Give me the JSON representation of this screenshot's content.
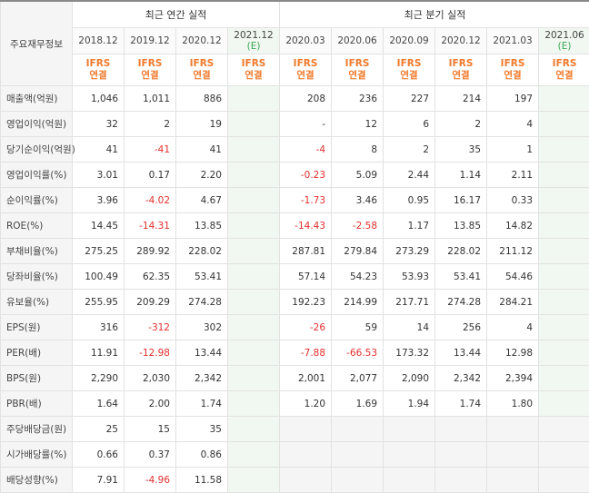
{
  "corner_label": "주요재무정보",
  "annual_title": "최근 연간 실적",
  "quarterly_title": "최근 분기 실적",
  "estimate_mark": "(E)",
  "ifrs_line1": "IFRS",
  "ifrs_line2": "연결",
  "annual_periods": [
    "2018.12",
    "2019.12",
    "2020.12",
    "2021.12"
  ],
  "quarterly_periods": [
    "2020.03",
    "2020.06",
    "2020.09",
    "2020.12",
    "2021.03",
    "2021.06"
  ],
  "colors": {
    "negative": "#e32e2e",
    "ifrs": "#f07a2c",
    "estimate_bg": "#f1f8f1",
    "estimate_mark": "#3aa652"
  },
  "groups": [
    {
      "rows": [
        {
          "label": "매출액(억원)",
          "annual": [
            "1,046",
            "1,011",
            "886",
            ""
          ],
          "quarterly": [
            "208",
            "236",
            "227",
            "214",
            "197",
            ""
          ]
        },
        {
          "label": "영업이익(억원)",
          "annual": [
            "32",
            "2",
            "19",
            ""
          ],
          "quarterly": [
            "-",
            "12",
            "6",
            "2",
            "4",
            ""
          ]
        },
        {
          "label": "당기순이익(억원)",
          "annual": [
            "41",
            "-41",
            "41",
            ""
          ],
          "quarterly": [
            "-4",
            "8",
            "2",
            "35",
            "1",
            ""
          ]
        }
      ]
    },
    {
      "rows": [
        {
          "label": "영업이익률(%)",
          "annual": [
            "3.01",
            "0.17",
            "2.20",
            ""
          ],
          "quarterly": [
            "-0.23",
            "5.09",
            "2.44",
            "1.14",
            "2.11",
            ""
          ]
        },
        {
          "label": "순이익률(%)",
          "annual": [
            "3.96",
            "-4.02",
            "4.67",
            ""
          ],
          "quarterly": [
            "-1.73",
            "3.46",
            "0.95",
            "16.17",
            "0.33",
            ""
          ]
        },
        {
          "label": "ROE(%)",
          "annual": [
            "14.45",
            "-14.31",
            "13.85",
            ""
          ],
          "quarterly": [
            "-14.43",
            "-2.58",
            "1.17",
            "13.85",
            "14.82",
            ""
          ]
        }
      ]
    },
    {
      "rows": [
        {
          "label": "부채비율(%)",
          "annual": [
            "275.25",
            "289.92",
            "228.02",
            ""
          ],
          "quarterly": [
            "287.81",
            "279.84",
            "273.29",
            "228.02",
            "211.12",
            ""
          ]
        },
        {
          "label": "당좌비율(%)",
          "annual": [
            "100.49",
            "62.35",
            "53.41",
            ""
          ],
          "quarterly": [
            "57.14",
            "54.23",
            "53.93",
            "53.41",
            "54.46",
            ""
          ]
        },
        {
          "label": "유보율(%)",
          "annual": [
            "255.95",
            "209.29",
            "274.28",
            ""
          ],
          "quarterly": [
            "192.23",
            "214.99",
            "217.71",
            "274.28",
            "284.21",
            ""
          ]
        }
      ]
    },
    {
      "rows": [
        {
          "label": "EPS(원)",
          "annual": [
            "316",
            "-312",
            "302",
            ""
          ],
          "quarterly": [
            "-26",
            "59",
            "14",
            "256",
            "4",
            ""
          ]
        },
        {
          "label": "PER(배)",
          "annual": [
            "11.91",
            "-12.98",
            "13.44",
            ""
          ],
          "quarterly": [
            "-7.88",
            "-66.53",
            "173.32",
            "13.44",
            "12.98",
            ""
          ]
        },
        {
          "label": "BPS(원)",
          "annual": [
            "2,290",
            "2,030",
            "2,342",
            ""
          ],
          "quarterly": [
            "2,001",
            "2,077",
            "2,090",
            "2,342",
            "2,394",
            ""
          ]
        },
        {
          "label": "PBR(배)",
          "annual": [
            "1.64",
            "2.00",
            "1.74",
            ""
          ],
          "quarterly": [
            "1.20",
            "1.69",
            "1.94",
            "1.74",
            "1.80",
            ""
          ]
        }
      ]
    },
    {
      "rows": [
        {
          "label": "주당배당금(원)",
          "annual": [
            "25",
            "15",
            "35",
            ""
          ],
          "quarterly": [
            "",
            "",
            "",
            "",
            "",
            ""
          ],
          "quarterly_blank": true
        },
        {
          "label": "시가배당률(%)",
          "annual": [
            "0.66",
            "0.37",
            "0.86",
            ""
          ],
          "quarterly": [
            "",
            "",
            "",
            "",
            "",
            ""
          ],
          "quarterly_blank": true
        },
        {
          "label": "배당성향(%)",
          "annual": [
            "7.91",
            "-4.96",
            "11.58",
            ""
          ],
          "quarterly": [
            "",
            "",
            "",
            "",
            "",
            ""
          ],
          "quarterly_blank": true
        }
      ]
    }
  ]
}
